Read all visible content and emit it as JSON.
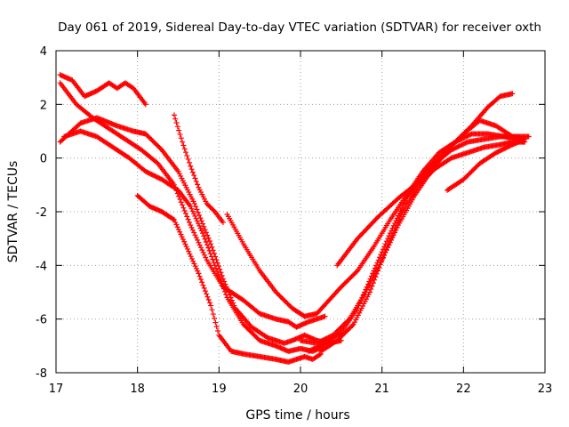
{
  "chart_data": {
    "type": "scatter",
    "title": "Day 061 of 2019, Sidereal Day-to-day VTEC variation (SDTVAR) for receiver oxth",
    "xlabel": "GPS time / hours",
    "ylabel": "SDTVAR / TECUs",
    "xlim": [
      17,
      23
    ],
    "ylim": [
      -8,
      4
    ],
    "xticks": [
      17,
      18,
      19,
      20,
      21,
      22,
      23
    ],
    "yticks": [
      -8,
      -6,
      -4,
      -2,
      0,
      2,
      4
    ],
    "grid": true,
    "marker": "+",
    "color": "#ff0000",
    "series": [
      {
        "name": "s1",
        "x": [
          17.05,
          17.2,
          17.35,
          17.5,
          17.65,
          17.75,
          17.85,
          17.95,
          18.05,
          18.1
        ],
        "y": [
          3.1,
          2.9,
          2.3,
          2.5,
          2.8,
          2.6,
          2.8,
          2.6,
          2.2,
          2.0
        ]
      },
      {
        "name": "s2",
        "x": [
          17.05,
          17.3,
          17.5,
          17.75,
          17.95,
          18.1,
          18.3,
          18.5,
          18.7,
          18.9,
          19.05,
          19.2,
          19.4,
          19.6,
          19.8,
          19.9,
          20.05,
          20.2,
          20.35,
          20.5
        ],
        "y": [
          0.6,
          1.3,
          1.5,
          1.2,
          1.0,
          0.9,
          0.3,
          -0.5,
          -1.7,
          -3.2,
          -4.5,
          -5.6,
          -6.3,
          -6.7,
          -6.9,
          -6.8,
          -6.6,
          -6.8,
          -6.9,
          -6.8
        ]
      },
      {
        "name": "s3",
        "x": [
          17.1,
          17.3,
          17.5,
          17.7,
          17.9,
          18.1,
          18.3,
          18.5,
          18.65,
          18.8,
          18.95,
          19.1,
          19.3,
          19.5,
          19.7,
          19.85,
          20.0,
          20.15,
          20.3
        ],
        "y": [
          0.8,
          1.0,
          0.8,
          0.4,
          0.0,
          -0.5,
          -0.8,
          -1.2,
          -1.8,
          -2.8,
          -4.0,
          -5.2,
          -6.2,
          -6.8,
          -7.0,
          -7.2,
          -7.1,
          -7.2,
          -7.0
        ]
      },
      {
        "name": "s4",
        "x": [
          17.05,
          17.25,
          17.45,
          17.65,
          17.85,
          18.05,
          18.25,
          18.45,
          18.65,
          18.85,
          19.05,
          19.3,
          19.5,
          19.7,
          19.85,
          19.95,
          20.1,
          20.2,
          20.3
        ],
        "y": [
          2.8,
          2.0,
          1.5,
          1.1,
          0.7,
          0.3,
          -0.2,
          -1.0,
          -2.5,
          -3.8,
          -4.8,
          -5.3,
          -5.8,
          -6.0,
          -6.1,
          -6.3,
          -6.1,
          -6.0,
          -5.9
        ]
      },
      {
        "name": "s5",
        "x": [
          18.0,
          18.15,
          18.3,
          18.45,
          18.6,
          18.75,
          18.9,
          19.0,
          19.15,
          19.3,
          19.5,
          19.7,
          19.85,
          19.95,
          20.05,
          20.15,
          20.25
        ],
        "y": [
          -1.4,
          -1.8,
          -2.0,
          -2.3,
          -3.3,
          -4.3,
          -5.5,
          -6.6,
          -7.2,
          -7.3,
          -7.4,
          -7.5,
          -7.6,
          -7.5,
          -7.4,
          -7.5,
          -7.3
        ]
      },
      {
        "name": "s6",
        "x": [
          18.45,
          18.55,
          18.65,
          18.75,
          18.85,
          18.95,
          19.05
        ],
        "y": [
          1.6,
          0.6,
          -0.3,
          -1.1,
          -1.7,
          -2.0,
          -2.4
        ]
      },
      {
        "name": "s7",
        "x": [
          19.1,
          19.3,
          19.5,
          19.7,
          19.9,
          20.05,
          20.2,
          20.35,
          20.5,
          20.7,
          20.9,
          21.1,
          21.3,
          21.5,
          21.7,
          21.9,
          22.1,
          22.3,
          22.5,
          22.7,
          22.75
        ],
        "y": [
          -2.1,
          -3.2,
          -4.2,
          -5.0,
          -5.6,
          -5.9,
          -5.8,
          -5.3,
          -4.8,
          -4.2,
          -3.3,
          -2.3,
          -1.4,
          -0.5,
          0.2,
          0.6,
          0.9,
          0.9,
          0.8,
          0.7,
          0.6
        ]
      },
      {
        "name": "s8",
        "x": [
          20.0,
          20.2,
          20.4,
          20.6,
          20.8,
          21.0,
          21.2,
          21.4,
          21.6,
          21.8,
          22.0,
          22.2,
          22.4,
          22.6,
          22.75
        ],
        "y": [
          -6.8,
          -6.9,
          -6.6,
          -6.0,
          -5.0,
          -3.8,
          -2.5,
          -1.4,
          -0.5,
          0.3,
          0.9,
          1.4,
          1.2,
          0.8,
          0.7
        ]
      },
      {
        "name": "s9",
        "x": [
          20.1,
          20.3,
          20.5,
          20.7,
          20.9,
          21.1,
          21.3,
          21.5,
          21.7,
          21.9,
          22.1,
          22.3,
          22.45,
          22.6
        ],
        "y": [
          -7.2,
          -6.9,
          -6.5,
          -5.6,
          -4.2,
          -2.8,
          -1.5,
          -0.6,
          0.0,
          0.6,
          1.2,
          1.9,
          2.3,
          2.4
        ]
      },
      {
        "name": "s10",
        "x": [
          20.25,
          20.45,
          20.65,
          20.85,
          21.05,
          21.25,
          21.45,
          21.65,
          21.85,
          22.05,
          22.25,
          22.45,
          22.6,
          22.75
        ],
        "y": [
          -7.2,
          -6.8,
          -6.2,
          -5.0,
          -3.4,
          -2.0,
          -1.0,
          -0.4,
          0.0,
          0.2,
          0.4,
          0.5,
          0.6,
          0.6
        ]
      },
      {
        "name": "s11",
        "x": [
          20.45,
          20.7,
          20.95,
          21.2,
          21.45,
          21.65,
          21.85,
          22.05,
          22.25,
          22.45,
          22.65,
          22.8
        ],
        "y": [
          -4.0,
          -3.0,
          -2.2,
          -1.5,
          -0.9,
          -0.2,
          0.3,
          0.6,
          0.7,
          0.8,
          0.8,
          0.8
        ]
      },
      {
        "name": "s12",
        "x": [
          21.8,
          22.0,
          22.2,
          22.4,
          22.6,
          22.75
        ],
        "y": [
          -1.2,
          -0.8,
          -0.2,
          0.2,
          0.5,
          0.7
        ]
      }
    ]
  }
}
